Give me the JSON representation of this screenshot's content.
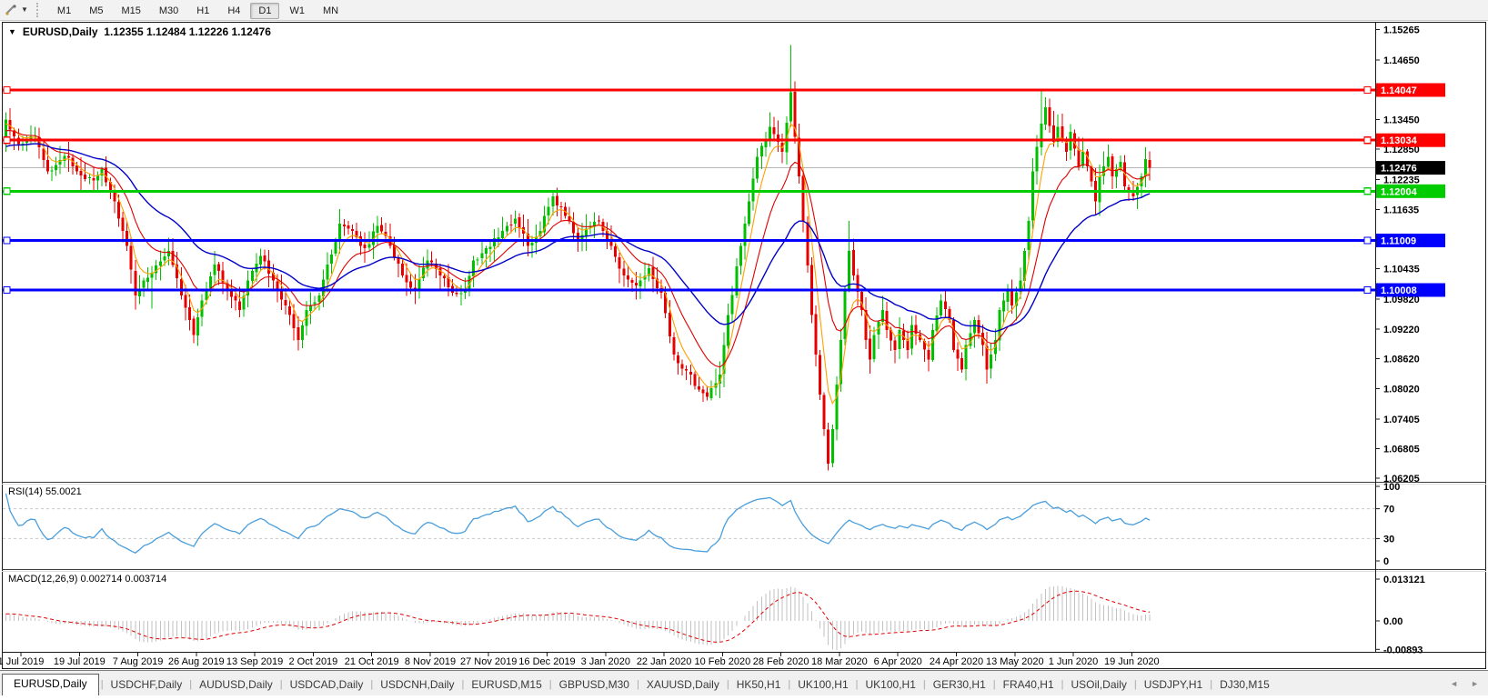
{
  "toolbar": {
    "timeframes": [
      {
        "label": "M1"
      },
      {
        "label": "M5"
      },
      {
        "label": "M15"
      },
      {
        "label": "M30"
      },
      {
        "label": "H1"
      },
      {
        "label": "H4"
      },
      {
        "label": "D1"
      },
      {
        "label": "W1"
      },
      {
        "label": "MN"
      }
    ],
    "active_timeframe": "D1"
  },
  "chart": {
    "header": {
      "dropdown_icon": "▼",
      "symbol": "EURUSD,Daily",
      "open": "1.12355",
      "high": "1.12484",
      "low": "1.12226",
      "close": "1.12476"
    }
  },
  "rsi_panel": {
    "label": "RSI(14) 55.0021",
    "line_color": "#4a9edb",
    "ticks": [
      {
        "v": 100,
        "t": "100"
      },
      {
        "v": 70,
        "t": "70"
      },
      {
        "v": 30,
        "t": "30"
      },
      {
        "v": 0,
        "t": "0"
      }
    ],
    "levels": [
      70,
      30
    ]
  },
  "macd_panel": {
    "label": "MACD(12,26,9) 0.002714 0.003714",
    "hist_color": "#c2c2c2",
    "signal_color": "#e00000",
    "ticks": [
      {
        "v": 0.013121,
        "t": "0.013121"
      },
      {
        "v": 0,
        "t": "0.00"
      },
      {
        "v": -0.00893,
        "t": "-0.00893"
      }
    ]
  },
  "tabs": {
    "items": [
      "EURUSD,Daily",
      "USDCHF,Daily",
      "AUDUSD,Daily",
      "USDCAD,Daily",
      "USDCNH,Daily",
      "EURUSD,M15",
      "GBPUSD,M30",
      "XAUUSD,Daily",
      "HK50,H1",
      "UK100,H1",
      "UK100,H1",
      "GER30,H1",
      "FRA40,H1",
      "USOil,Daily",
      "USDJPY,H1",
      "DJ30,M15"
    ],
    "active_index": 0,
    "scroll_left_icon": "◄",
    "scroll_right_icon": "►"
  },
  "chart_data": {
    "type": "candlestick",
    "title": "EURUSD,Daily",
    "bull_color": "#00c000",
    "bear_color": "#e80000",
    "bid_line": {
      "price": 1.12476,
      "label": "1.12476",
      "color": "#b6b6b6",
      "badge_color": "#000000"
    },
    "y_axis_ticks": [
      "1.15265",
      "1.14650",
      "1.13450",
      "1.12850",
      "1.12235",
      "1.11635",
      "1.10435",
      "1.09820",
      "1.09220",
      "1.08620",
      "1.08020",
      "1.07405",
      "1.06805",
      "1.06205"
    ],
    "y_range": [
      1.06205,
      1.15265
    ],
    "hlines": [
      {
        "price": 1.14047,
        "label": "1.14047",
        "color": "#ff0000"
      },
      {
        "price": 1.13034,
        "label": "1.13034",
        "color": "#ff0000"
      },
      {
        "price": 1.12004,
        "label": "1.12004",
        "color": "#00cc00"
      },
      {
        "price": 1.11009,
        "label": "1.11009",
        "color": "#0000ff"
      },
      {
        "price": 1.10008,
        "label": "1.10008",
        "color": "#0000ff"
      }
    ],
    "x_labels": [
      "1 Jul 2019",
      "19 Jul 2019",
      "7 Aug 2019",
      "26 Aug 2019",
      "13 Sep 2019",
      "2 Oct 2019",
      "21 Oct 2019",
      "8 Nov 2019",
      "27 Nov 2019",
      "16 Dec 2019",
      "3 Jan 2020",
      "22 Jan 2020",
      "10 Feb 2020",
      "28 Feb 2020",
      "18 Mar 2020",
      "6 Apr 2020",
      "24 Apr 2020",
      "13 May 2020",
      "1 Jun 2020",
      "19 Jun 2020"
    ],
    "ma": [
      {
        "name": "fast",
        "period": 5,
        "color": "#ffa000"
      },
      {
        "name": "mid",
        "period": 13,
        "color": "#e00000"
      },
      {
        "name": "slow",
        "period": 34,
        "color": "#0000c8"
      }
    ],
    "rsi_period": 14,
    "macd_params": [
      12,
      26,
      9
    ],
    "seed": 20200626,
    "bars": 275,
    "anchors": [
      [
        0,
        1.1345
      ],
      [
        3,
        1.1295
      ],
      [
        7,
        1.131
      ],
      [
        10,
        1.124
      ],
      [
        14,
        1.1272
      ],
      [
        17,
        1.124
      ],
      [
        21,
        1.1222
      ],
      [
        23,
        1.1245
      ],
      [
        26,
        1.118
      ],
      [
        29,
        1.109
      ],
      [
        31,
        1.099
      ],
      [
        33,
        1.102
      ],
      [
        36,
        1.105
      ],
      [
        39,
        1.108
      ],
      [
        42,
        1.099
      ],
      [
        45,
        1.091
      ],
      [
        47,
        1.098
      ],
      [
        50,
        1.1052
      ],
      [
        53,
        1.1
      ],
      [
        56,
        1.096
      ],
      [
        58,
        1.102
      ],
      [
        61,
        1.107
      ],
      [
        64,
        1.102
      ],
      [
        68,
        1.095
      ],
      [
        70,
        1.09
      ],
      [
        72,
        1.096
      ],
      [
        75,
        1.099
      ],
      [
        77,
        1.1052
      ],
      [
        80,
        1.1135
      ],
      [
        83,
        1.112
      ],
      [
        86,
        1.1085
      ],
      [
        89,
        1.113
      ],
      [
        92,
        1.109
      ],
      [
        95,
        1.103
      ],
      [
        98,
        1.1
      ],
      [
        101,
        1.106
      ],
      [
        104,
        1.103
      ],
      [
        107,
        1.0995
      ],
      [
        110,
        1.1
      ],
      [
        112,
        1.106
      ],
      [
        115,
        1.1085
      ],
      [
        119,
        1.112
      ],
      [
        122,
        1.1145
      ],
      [
        125,
        1.109
      ],
      [
        128,
        1.112
      ],
      [
        131,
        1.119
      ],
      [
        134,
        1.115
      ],
      [
        137,
        1.11
      ],
      [
        139,
        1.1125
      ],
      [
        142,
        1.114
      ],
      [
        145,
        1.109
      ],
      [
        148,
        1.103
      ],
      [
        151,
        1.101
      ],
      [
        154,
        1.1045
      ],
      [
        157,
        1.0995
      ],
      [
        160,
        1.087
      ],
      [
        163,
        1.0838
      ],
      [
        166,
        1.08
      ],
      [
        168,
        1.0785
      ],
      [
        171,
        1.083
      ],
      [
        173,
        1.095
      ],
      [
        176,
        1.109
      ],
      [
        178,
        1.118
      ],
      [
        180,
        1.127
      ],
      [
        183,
        1.133
      ],
      [
        185,
        1.13
      ],
      [
        186,
        1.128
      ],
      [
        188,
        1.14
      ],
      [
        189,
        1.131
      ],
      [
        190,
        1.123
      ],
      [
        191,
        1.114
      ],
      [
        192,
        1.105
      ],
      [
        193,
        1.095
      ],
      [
        194,
        1.087
      ],
      [
        195,
        1.079
      ],
      [
        196,
        1.072
      ],
      [
        197,
        1.065
      ],
      [
        198,
        1.072
      ],
      [
        199,
        1.081
      ],
      [
        200,
        1.09
      ],
      [
        201,
        1.1
      ],
      [
        202,
        1.108
      ],
      [
        203,
        1.103
      ],
      [
        205,
        1.096
      ],
      [
        206,
        1.09
      ],
      [
        207,
        1.086
      ],
      [
        208,
        1.091
      ],
      [
        210,
        1.096
      ],
      [
        211,
        1.092
      ],
      [
        213,
        1.088
      ],
      [
        214,
        1.092
      ],
      [
        216,
        1.088
      ],
      [
        217,
        1.093
      ],
      [
        219,
        1.09
      ],
      [
        221,
        1.086
      ],
      [
        222,
        1.092
      ],
      [
        224,
        1.098
      ],
      [
        226,
        1.094
      ],
      [
        227,
        1.088
      ],
      [
        229,
        1.084
      ],
      [
        230,
        1.089
      ],
      [
        232,
        1.094
      ],
      [
        234,
        1.089
      ],
      [
        235,
        1.084
      ],
      [
        237,
        1.09
      ],
      [
        238,
        1.096
      ],
      [
        240,
        1.1
      ],
      [
        241,
        1.097
      ],
      [
        243,
        1.102
      ],
      [
        244,
        1.108
      ],
      [
        245,
        1.114
      ],
      [
        246,
        1.124
      ],
      [
        248,
        1.1337
      ],
      [
        249,
        1.137
      ],
      [
        251,
        1.13
      ],
      [
        252,
        1.133
      ],
      [
        254,
        1.128
      ],
      [
        255,
        1.132
      ],
      [
        257,
        1.125
      ],
      [
        258,
        1.128
      ],
      [
        260,
        1.122
      ],
      [
        261,
        1.118
      ],
      [
        262,
        1.123
      ],
      [
        264,
        1.127
      ],
      [
        265,
        1.123
      ],
      [
        267,
        1.126
      ],
      [
        268,
        1.121
      ],
      [
        270,
        1.119
      ],
      [
        272,
        1.123
      ],
      [
        273,
        1.1265
      ],
      [
        274,
        1.12476
      ]
    ],
    "wick_overrides": {
      "35": {
        "l": 1.0963
      },
      "45": {
        "l": 1.0893
      },
      "70": {
        "l": 1.0879
      },
      "168": {
        "l": 1.0778
      },
      "171": {
        "l": 1.0782
      },
      "188": {
        "h": 1.1496
      },
      "197": {
        "l": 1.0636
      },
      "202": {
        "h": 1.114
      },
      "248": {
        "h": 1.1404
      },
      "249": {
        "h": 1.139
      }
    }
  }
}
